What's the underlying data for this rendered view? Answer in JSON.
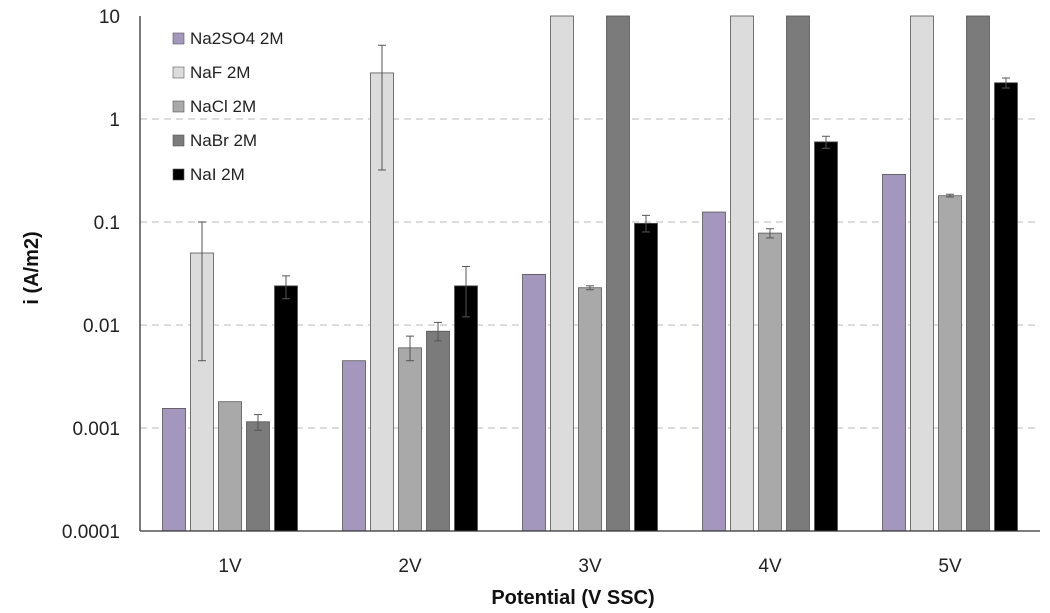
{
  "chart_data": {
    "type": "bar",
    "title": "",
    "xlabel": "Potential (V SSC)",
    "ylabel": "i (A/m2)",
    "yscale": "log",
    "ylim": [
      0.0001,
      10
    ],
    "yticks": [
      "0.0001",
      "0.001",
      "0.01",
      "0.1",
      "1",
      "10"
    ],
    "grid": "horizontal dashed",
    "legend_position": "top-left",
    "categories": [
      "1V",
      "2V",
      "3V",
      "4V",
      "5V"
    ],
    "series": [
      {
        "name": "Na2SO4 2M",
        "color": "#a497bd",
        "values": [
          0.00155,
          0.0045,
          0.031,
          0.125,
          0.29
        ],
        "error": [
          null,
          null,
          null,
          null,
          null
        ]
      },
      {
        "name": "NaF 2M",
        "color": "#dcdcdc",
        "values": [
          0.05,
          2.8,
          10,
          10,
          10
        ],
        "error": [
          [
            0.0045,
            0.1
          ],
          [
            0.32,
            5.2
          ],
          null,
          null,
          null
        ]
      },
      {
        "name": "NaCl 2M",
        "color": "#a9a9a9",
        "values": [
          0.0018,
          0.006,
          0.023,
          0.078,
          0.18
        ],
        "error": [
          null,
          [
            0.0045,
            0.0078
          ],
          [
            0.022,
            0.024
          ],
          [
            0.07,
            0.086
          ],
          [
            0.175,
            0.186
          ]
        ]
      },
      {
        "name": "NaBr 2M",
        "color": "#7b7b7b",
        "values": [
          0.00115,
          0.0087,
          10,
          10,
          10
        ],
        "error": [
          [
            0.00095,
            0.00135
          ],
          [
            0.007,
            0.0106
          ],
          null,
          null,
          null
        ]
      },
      {
        "name": "NaI 2M",
        "color": "#000000",
        "values": [
          0.024,
          0.024,
          0.097,
          0.6,
          2.25
        ],
        "error": [
          [
            0.018,
            0.03
          ],
          [
            0.012,
            0.037
          ],
          [
            0.08,
            0.116
          ],
          [
            0.52,
            0.68
          ],
          [
            2.0,
            2.5
          ]
        ]
      }
    ]
  }
}
